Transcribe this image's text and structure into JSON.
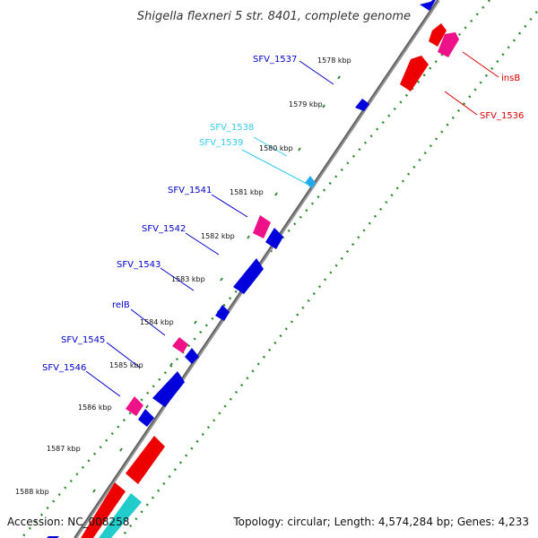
{
  "title": "Shigella flexneri 5 str. 8401, complete genome",
  "footer": {
    "accession": "Accession: NC_008258",
    "topology": "Topology: circular; Length: 4,574,284 bp; Genes: 4,233"
  },
  "ticks": [
    "1578 kbp",
    "1579 kbp",
    "1580 kbp",
    "1581 kbp",
    "1582 kbp",
    "1583 kbp",
    "1584 kbp",
    "1585 kbp",
    "1586 kbp",
    "1587 kbp",
    "1588 kbp"
  ],
  "gene_labels": [
    {
      "text": "SFV_1537",
      "color": "#0000cc"
    },
    {
      "text": "SFV_1538",
      "color": "#33ccee"
    },
    {
      "text": "SFV_1539",
      "color": "#33ccee"
    },
    {
      "text": "SFV_1541",
      "color": "#0000cc"
    },
    {
      "text": "SFV_1542",
      "color": "#0000cc"
    },
    {
      "text": "SFV_1543",
      "color": "#0000cc"
    },
    {
      "text": "relB",
      "color": "#0000cc"
    },
    {
      "text": "SFV_1545",
      "color": "#0000cc"
    },
    {
      "text": "SFV_1546",
      "color": "#0000cc"
    },
    {
      "text": "insB",
      "color": "#dd0000"
    },
    {
      "text": "SFV_1536",
      "color": "#dd0000"
    }
  ],
  "colors": {
    "forward_cds": "#ee0000",
    "reverse_cds": "#0000dd",
    "pseudogene": "#ee1188",
    "rna": "#22cccc",
    "backbone": "#808080",
    "tick_marks": "#338833"
  }
}
